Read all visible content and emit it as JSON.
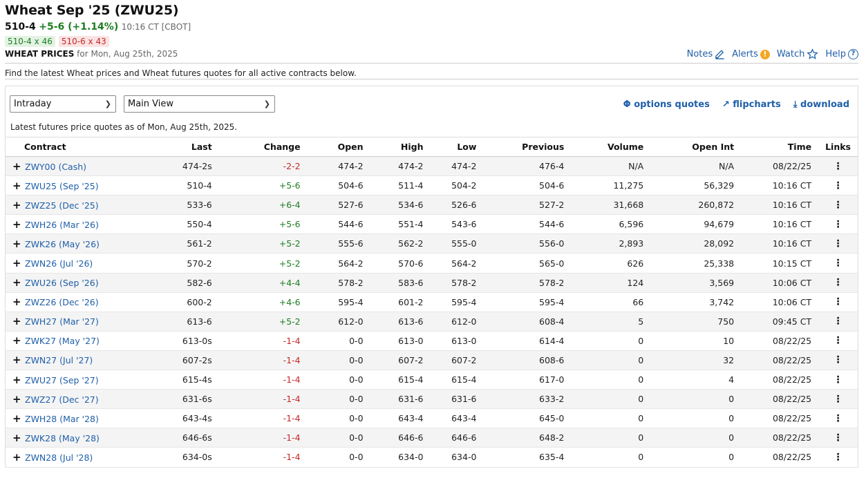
{
  "header": {
    "title": "Wheat Sep '25 (ZWU25)",
    "last": "510-4",
    "change": "+5-6 (+1.14%)",
    "time": "10:16 CT [CBOT]",
    "bid": "510-4 x 46",
    "ask": "510-6 x 43",
    "subhead_bold": "WHEAT PRICES",
    "subhead_rest": "for Mon, Aug 25th, 2025"
  },
  "toplinks": {
    "notes": "Notes",
    "alerts": "Alerts",
    "watch": "Watch",
    "help": "Help"
  },
  "description": "Find the latest Wheat prices and Wheat futures quotes for all active contracts below.",
  "controls": {
    "period_select": "Intraday",
    "view_select": "Main View",
    "options_quotes": "options quotes",
    "flipcharts": "flipcharts",
    "download": "download"
  },
  "asof": "Latest futures price quotes as of Mon, Aug 25th, 2025.",
  "table": {
    "columns": [
      "Contract",
      "Last",
      "Change",
      "Open",
      "High",
      "Low",
      "Previous",
      "Volume",
      "Open Int",
      "Time",
      "Links"
    ],
    "rows": [
      {
        "contract": "ZWY00 (Cash)",
        "last": "474-2s",
        "change": "-2-2",
        "dir": "neg",
        "open": "474-2",
        "high": "474-2",
        "low": "474-2",
        "previous": "476-4",
        "volume": "N/A",
        "open_int": "N/A",
        "time": "08/22/25"
      },
      {
        "contract": "ZWU25 (Sep '25)",
        "last": "510-4",
        "change": "+5-6",
        "dir": "pos",
        "open": "504-6",
        "high": "511-4",
        "low": "504-2",
        "previous": "504-6",
        "volume": "11,275",
        "open_int": "56,329",
        "time": "10:16 CT"
      },
      {
        "contract": "ZWZ25 (Dec '25)",
        "last": "533-6",
        "change": "+6-4",
        "dir": "pos",
        "open": "527-6",
        "high": "534-6",
        "low": "526-6",
        "previous": "527-2",
        "volume": "31,668",
        "open_int": "260,872",
        "time": "10:16 CT"
      },
      {
        "contract": "ZWH26 (Mar '26)",
        "last": "550-4",
        "change": "+5-6",
        "dir": "pos",
        "open": "544-6",
        "high": "551-4",
        "low": "543-6",
        "previous": "544-6",
        "volume": "6,596",
        "open_int": "94,679",
        "time": "10:16 CT"
      },
      {
        "contract": "ZWK26 (May '26)",
        "last": "561-2",
        "change": "+5-2",
        "dir": "pos",
        "open": "555-6",
        "high": "562-2",
        "low": "555-0",
        "previous": "556-0",
        "volume": "2,893",
        "open_int": "28,092",
        "time": "10:16 CT"
      },
      {
        "contract": "ZWN26 (Jul '26)",
        "last": "570-2",
        "change": "+5-2",
        "dir": "pos",
        "open": "564-2",
        "high": "570-6",
        "low": "564-2",
        "previous": "565-0",
        "volume": "626",
        "open_int": "25,338",
        "time": "10:15 CT"
      },
      {
        "contract": "ZWU26 (Sep '26)",
        "last": "582-6",
        "change": "+4-4",
        "dir": "pos",
        "open": "578-2",
        "high": "583-6",
        "low": "578-2",
        "previous": "578-2",
        "volume": "124",
        "open_int": "3,569",
        "time": "10:06 CT"
      },
      {
        "contract": "ZWZ26 (Dec '26)",
        "last": "600-2",
        "change": "+4-6",
        "dir": "pos",
        "open": "595-4",
        "high": "601-2",
        "low": "595-4",
        "previous": "595-4",
        "volume": "66",
        "open_int": "3,742",
        "time": "10:06 CT"
      },
      {
        "contract": "ZWH27 (Mar '27)",
        "last": "613-6",
        "change": "+5-2",
        "dir": "pos",
        "open": "612-0",
        "high": "613-6",
        "low": "612-0",
        "previous": "608-4",
        "volume": "5",
        "open_int": "750",
        "time": "09:45 CT"
      },
      {
        "contract": "ZWK27 (May '27)",
        "last": "613-0s",
        "change": "-1-4",
        "dir": "neg",
        "open": "0-0",
        "high": "613-0",
        "low": "613-0",
        "previous": "614-4",
        "volume": "0",
        "open_int": "10",
        "time": "08/22/25"
      },
      {
        "contract": "ZWN27 (Jul '27)",
        "last": "607-2s",
        "change": "-1-4",
        "dir": "neg",
        "open": "0-0",
        "high": "607-2",
        "low": "607-2",
        "previous": "608-6",
        "volume": "0",
        "open_int": "32",
        "time": "08/22/25"
      },
      {
        "contract": "ZWU27 (Sep '27)",
        "last": "615-4s",
        "change": "-1-4",
        "dir": "neg",
        "open": "0-0",
        "high": "615-4",
        "low": "615-4",
        "previous": "617-0",
        "volume": "0",
        "open_int": "4",
        "time": "08/22/25"
      },
      {
        "contract": "ZWZ27 (Dec '27)",
        "last": "631-6s",
        "change": "-1-4",
        "dir": "neg",
        "open": "0-0",
        "high": "631-6",
        "low": "631-6",
        "previous": "633-2",
        "volume": "0",
        "open_int": "0",
        "time": "08/22/25"
      },
      {
        "contract": "ZWH28 (Mar '28)",
        "last": "643-4s",
        "change": "-1-4",
        "dir": "neg",
        "open": "0-0",
        "high": "643-4",
        "low": "643-4",
        "previous": "645-0",
        "volume": "0",
        "open_int": "0",
        "time": "08/22/25"
      },
      {
        "contract": "ZWK28 (May '28)",
        "last": "646-6s",
        "change": "-1-4",
        "dir": "neg",
        "open": "0-0",
        "high": "646-6",
        "low": "646-6",
        "previous": "648-2",
        "volume": "0",
        "open_int": "0",
        "time": "08/22/25"
      },
      {
        "contract": "ZWN28 (Jul '28)",
        "last": "634-0s",
        "change": "-1-4",
        "dir": "neg",
        "open": "0-0",
        "high": "634-0",
        "low": "634-0",
        "previous": "635-4",
        "volume": "0",
        "open_int": "0",
        "time": "08/22/25"
      }
    ]
  },
  "colors": {
    "link": "#1f5fa8",
    "positive": "#1e7d22",
    "negative": "#c62828"
  }
}
